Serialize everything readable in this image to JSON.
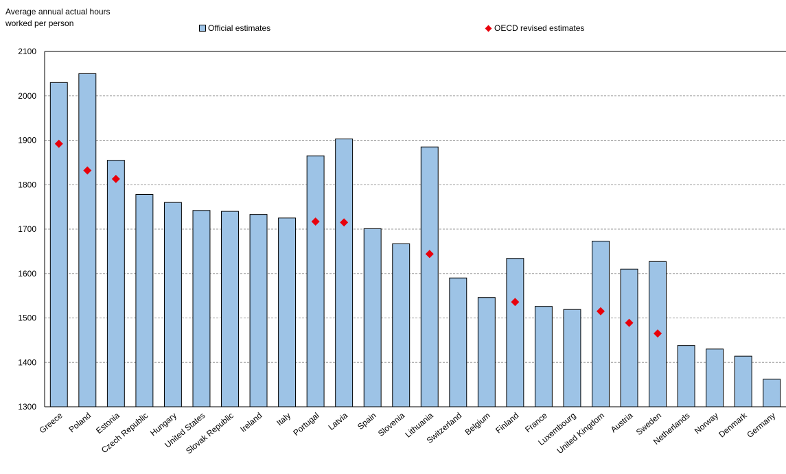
{
  "chart_data": {
    "type": "bar",
    "ylabel": "Average annual actual hours worked per person",
    "ylabel_lines": [
      "Average annual actual hours",
      "worked per person"
    ],
    "ylim": [
      1300,
      2100
    ],
    "yticks": [
      1300,
      1400,
      1500,
      1600,
      1700,
      1800,
      1900,
      2000,
      2100
    ],
    "grid": true,
    "legend_placement": "top",
    "categories": [
      "Greece",
      "Poland",
      "Estonia",
      "Czech Republic",
      "Hungary",
      "United States",
      "Slovak Republic",
      "Ireland",
      "Italy",
      "Portugal",
      "Latvia",
      "Spain",
      "Slovenia",
      "Lithuania",
      "Switzerland",
      "Belgium",
      "Finland",
      "France",
      "Luxembourg",
      "United Kingdom",
      "Austria",
      "Sweden",
      "Netherlands",
      "Norway",
      "Denmark",
      "Germany"
    ],
    "series": [
      {
        "name": "Official estimates",
        "kind": "bar",
        "color": "#9DC3E6",
        "values": [
          2030,
          2050,
          1855,
          1778,
          1760,
          1742,
          1740,
          1733,
          1725,
          1865,
          1903,
          1701,
          1667,
          1885,
          1590,
          1546,
          1634,
          1526,
          1519,
          1673,
          1610,
          1627,
          1438,
          1430,
          1414,
          1362
        ]
      },
      {
        "name": "OECD revised estimates",
        "kind": "marker",
        "color": "#E8000B",
        "values": [
          1892,
          1832,
          1813,
          null,
          null,
          null,
          null,
          null,
          null,
          1717,
          1715,
          null,
          null,
          1644,
          null,
          null,
          1536,
          null,
          null,
          1515,
          1489,
          1465,
          null,
          null,
          null,
          null
        ]
      }
    ]
  }
}
